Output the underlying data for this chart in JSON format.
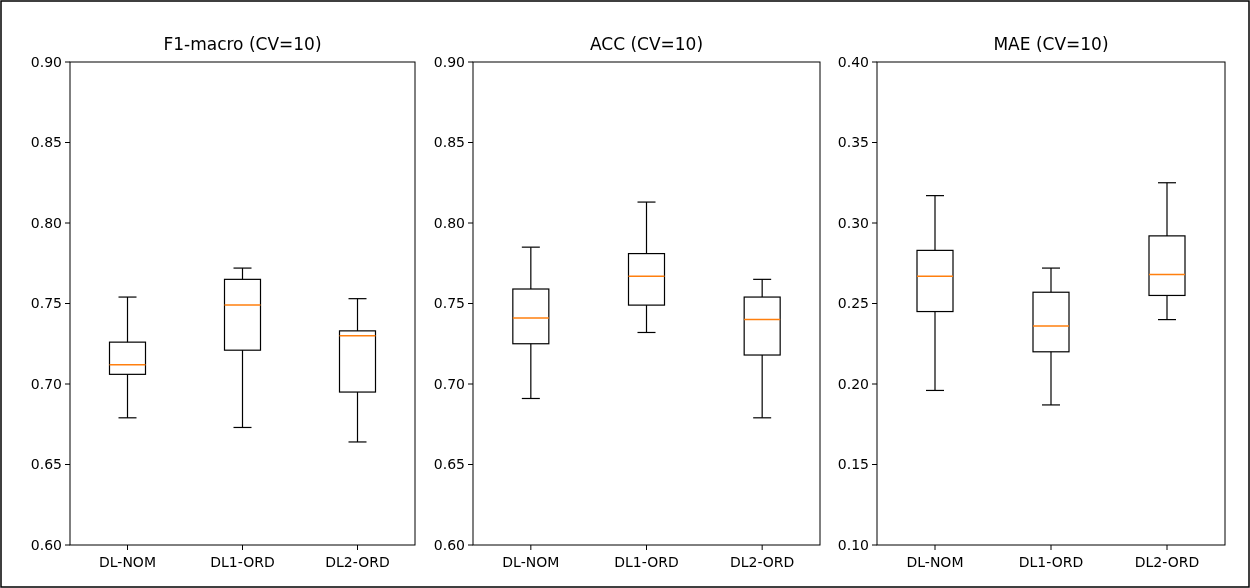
{
  "chart_data": [
    {
      "type": "box",
      "title": "F1-macro (CV=10)",
      "categories": [
        "DL-NOM",
        "DL1-ORD",
        "DL2-ORD"
      ],
      "ylim": [
        0.6,
        0.9
      ],
      "yticks": [
        {
          "value": 0.6,
          "label": "0.60"
        },
        {
          "value": 0.65,
          "label": "0.65"
        },
        {
          "value": 0.7,
          "label": "0.70"
        },
        {
          "value": 0.75,
          "label": "0.75"
        },
        {
          "value": 0.8,
          "label": "0.80"
        },
        {
          "value": 0.85,
          "label": "0.85"
        },
        {
          "value": 0.9,
          "label": "0.90"
        }
      ],
      "color": "#000000",
      "boxes": [
        {
          "low": 0.679,
          "q1": 0.706,
          "median": 0.712,
          "q3": 0.726,
          "high": 0.754
        },
        {
          "low": 0.673,
          "q1": 0.721,
          "median": 0.749,
          "q3": 0.765,
          "high": 0.772
        },
        {
          "low": 0.664,
          "q1": 0.695,
          "median": 0.73,
          "q3": 0.733,
          "high": 0.753
        }
      ]
    },
    {
      "type": "box",
      "title": "ACC (CV=10)",
      "categories": [
        "DL-NOM",
        "DL1-ORD",
        "DL2-ORD"
      ],
      "ylim": [
        0.6,
        0.9
      ],
      "yticks": [
        {
          "value": 0.6,
          "label": "0.60"
        },
        {
          "value": 0.65,
          "label": "0.65"
        },
        {
          "value": 0.7,
          "label": "0.70"
        },
        {
          "value": 0.75,
          "label": "0.75"
        },
        {
          "value": 0.8,
          "label": "0.80"
        },
        {
          "value": 0.85,
          "label": "0.85"
        },
        {
          "value": 0.9,
          "label": "0.90"
        }
      ],
      "color": "#000000",
      "boxes": [
        {
          "low": 0.691,
          "q1": 0.725,
          "median": 0.741,
          "q3": 0.759,
          "high": 0.785
        },
        {
          "low": 0.732,
          "q1": 0.749,
          "median": 0.767,
          "q3": 0.781,
          "high": 0.813
        },
        {
          "low": 0.679,
          "q1": 0.718,
          "median": 0.74,
          "q3": 0.754,
          "high": 0.765
        }
      ]
    },
    {
      "type": "box",
      "title": "MAE (CV=10)",
      "categories": [
        "DL-NOM",
        "DL1-ORD",
        "DL2-ORD"
      ],
      "ylim": [
        0.1,
        0.4
      ],
      "yticks": [
        {
          "value": 0.1,
          "label": "0.10"
        },
        {
          "value": 0.15,
          "label": "0.15"
        },
        {
          "value": 0.2,
          "label": "0.20"
        },
        {
          "value": 0.25,
          "label": "0.25"
        },
        {
          "value": 0.3,
          "label": "0.30"
        },
        {
          "value": 0.35,
          "label": "0.35"
        },
        {
          "value": 0.4,
          "label": "0.40"
        }
      ],
      "color": "#000000",
      "boxes": [
        {
          "low": 0.196,
          "q1": 0.245,
          "median": 0.267,
          "q3": 0.283,
          "high": 0.317
        },
        {
          "low": 0.187,
          "q1": 0.22,
          "median": 0.236,
          "q3": 0.257,
          "high": 0.272
        },
        {
          "low": 0.24,
          "q1": 0.255,
          "median": 0.268,
          "q3": 0.292,
          "high": 0.325
        }
      ]
    }
  ]
}
